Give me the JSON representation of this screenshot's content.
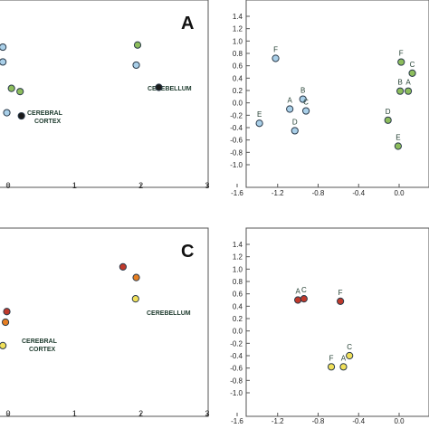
{
  "chart_data": [
    {
      "type": "scatter",
      "panel_letter": "A",
      "region_labels": [
        "CEREBRAL\nCORTEX",
        "CEREBELLUM"
      ],
      "xlim": [
        -0.1,
        3
      ],
      "x_ticks": [
        "0",
        "1",
        "2",
        "3"
      ],
      "grid": false,
      "points": [
        {
          "x": -0.08,
          "y": 6.2,
          "color": "#a9cfe8",
          "label": ""
        },
        {
          "x": -0.08,
          "y": 5.5,
          "color": "#a9cfe8",
          "label": ""
        },
        {
          "x": -0.02,
          "y": 3.1,
          "color": "#a9cfe8",
          "label": ""
        },
        {
          "x": 0.05,
          "y": 4.25,
          "color": "#8dbd5c",
          "label": ""
        },
        {
          "x": 0.18,
          "y": 4.1,
          "color": "#8dbd5c",
          "label": ""
        },
        {
          "x": 0.2,
          "y": 2.95,
          "color": "#1a1a1a",
          "label": ""
        },
        {
          "x": 1.95,
          "y": 6.3,
          "color": "#8dbd5c",
          "label": ""
        },
        {
          "x": 1.93,
          "y": 5.35,
          "color": "#a9cfe8",
          "label": ""
        },
        {
          "x": 2.27,
          "y": 4.3,
          "color": "#1a1a1a",
          "label": ""
        }
      ]
    },
    {
      "type": "scatter",
      "xlim": [
        -1.6,
        0.2
      ],
      "ylim": [
        -1.2,
        1.4
      ],
      "x_ticks": [
        "-1.6",
        "-1.2",
        "-0.8",
        "-0.4",
        "0.0"
      ],
      "y_ticks": [
        "1.4",
        "1.2",
        "1.0",
        "0.8",
        "0.6",
        "0.4",
        "0.2",
        "0.0",
        "-0.2",
        "-0.4",
        "-0.6",
        "-0.8",
        "-1.0"
      ],
      "grid": false,
      "points": [
        {
          "x": -1.22,
          "y": 0.72,
          "color": "#a9cfe8",
          "label": "F"
        },
        {
          "x": -1.38,
          "y": -0.33,
          "color": "#a9cfe8",
          "label": "E"
        },
        {
          "x": -1.08,
          "y": -0.1,
          "color": "#a9cfe8",
          "label": "A"
        },
        {
          "x": -0.95,
          "y": 0.06,
          "color": "#a9cfe8",
          "label": "B"
        },
        {
          "x": -0.92,
          "y": -0.13,
          "color": "#a9cfe8",
          "label": "C"
        },
        {
          "x": -1.03,
          "y": -0.45,
          "color": "#a9cfe8",
          "label": "D"
        },
        {
          "x": 0.02,
          "y": 0.66,
          "color": "#8dbd5c",
          "label": "F"
        },
        {
          "x": 0.13,
          "y": 0.48,
          "color": "#8dbd5c",
          "label": "C"
        },
        {
          "x": 0.01,
          "y": 0.19,
          "color": "#8dbd5c",
          "label": "B"
        },
        {
          "x": 0.09,
          "y": 0.19,
          "color": "#8dbd5c",
          "label": "A"
        },
        {
          "x": -0.11,
          "y": -0.28,
          "color": "#8dbd5c",
          "label": "D"
        },
        {
          "x": -0.01,
          "y": -0.7,
          "color": "#8dbd5c",
          "label": "E"
        }
      ]
    },
    {
      "type": "scatter",
      "panel_letter": "C",
      "region_labels": [
        "CEREBRAL\nCORTEX",
        "CEREBELLUM"
      ],
      "xlim": [
        -0.1,
        3
      ],
      "x_ticks": [
        "0",
        "1",
        "2",
        "3"
      ],
      "grid": false,
      "points": [
        {
          "x": -0.02,
          "y": 4.5,
          "color": "#c0392b",
          "label": ""
        },
        {
          "x": -0.04,
          "y": 4.0,
          "color": "#e67e22",
          "label": ""
        },
        {
          "x": -0.08,
          "y": 2.9,
          "color": "#f1e05a",
          "label": ""
        },
        {
          "x": 1.73,
          "y": 6.6,
          "color": "#c0392b",
          "label": ""
        },
        {
          "x": 1.93,
          "y": 6.1,
          "color": "#e67e22",
          "label": ""
        },
        {
          "x": 1.92,
          "y": 5.1,
          "color": "#f1e05a",
          "label": ""
        }
      ]
    },
    {
      "type": "scatter",
      "xlim": [
        -1.6,
        0.2
      ],
      "ylim": [
        -1.2,
        1.4
      ],
      "x_ticks": [
        "-1.6",
        "-1.2",
        "-0.8",
        "-0.4",
        "0.0"
      ],
      "y_ticks": [
        "1.4",
        "1.2",
        "1.0",
        "0.8",
        "0.6",
        "0.4",
        "0.2",
        "0.0",
        "-0.2",
        "-0.4",
        "-0.6",
        "-0.8",
        "-1.0"
      ],
      "grid": false,
      "points": [
        {
          "x": -1.0,
          "y": 0.5,
          "color": "#c0392b",
          "label": "A"
        },
        {
          "x": -0.94,
          "y": 0.52,
          "color": "#c0392b",
          "label": "C"
        },
        {
          "x": -0.58,
          "y": 0.48,
          "color": "#c0392b",
          "label": "F"
        },
        {
          "x": -0.67,
          "y": -0.58,
          "color": "#f1e05a",
          "label": "F"
        },
        {
          "x": -0.55,
          "y": -0.58,
          "color": "#f1e05a",
          "label": "A"
        },
        {
          "x": -0.49,
          "y": -0.4,
          "color": "#f1e05a",
          "label": "C"
        }
      ]
    }
  ]
}
